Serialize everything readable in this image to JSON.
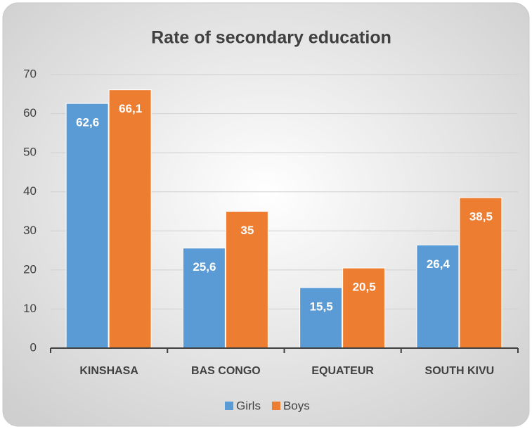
{
  "chart_data": {
    "type": "bar",
    "title": "Rate of secondary education",
    "categories": [
      "KINSHASA",
      "BAS CONGO",
      "EQUATEUR",
      "SOUTH KIVU"
    ],
    "series": [
      {
        "name": "Girls",
        "color": "#5b9bd5",
        "values": [
          62.6,
          25.6,
          15.5,
          26.4
        ],
        "value_labels": [
          "62,6",
          "25,6",
          "15,5",
          "26,4"
        ]
      },
      {
        "name": "Boys",
        "color": "#ed7d31",
        "values": [
          66.1,
          35,
          20.5,
          38.5
        ],
        "value_labels": [
          "66,1",
          "35",
          "20,5",
          "38,5"
        ]
      }
    ],
    "ylim": [
      0,
      70
    ],
    "yticks": [
      0,
      10,
      20,
      30,
      40,
      50,
      60,
      70
    ],
    "grid": true,
    "legend": "bottom"
  }
}
